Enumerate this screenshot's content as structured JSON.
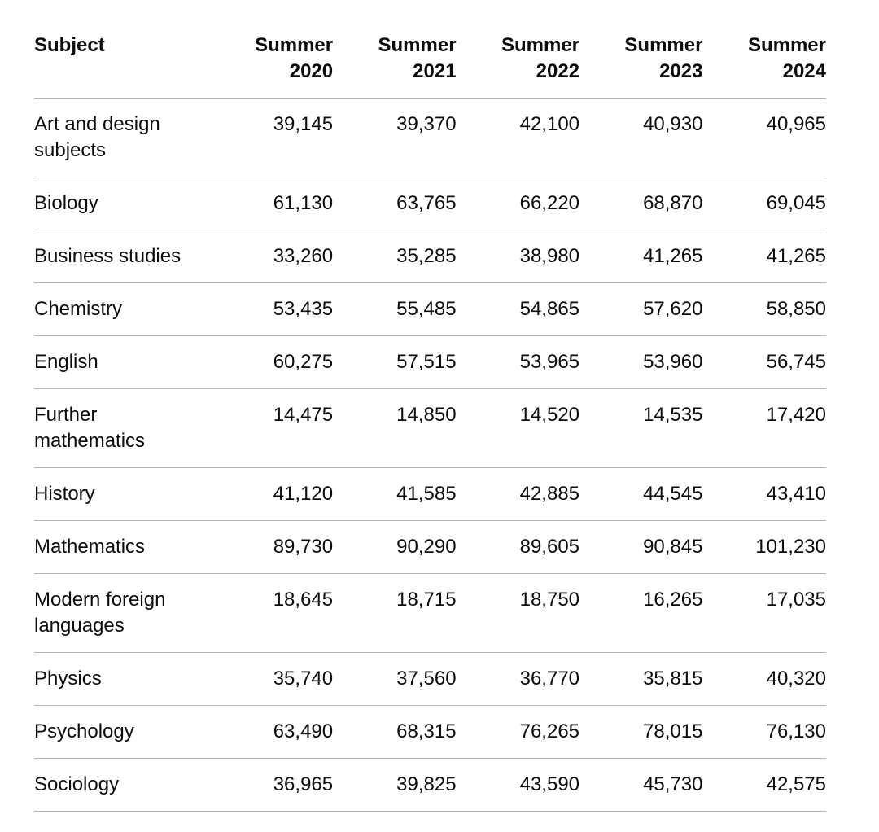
{
  "page": {
    "background_color": "#ffffff",
    "text_color": "#0b0c0c",
    "divider_color": "#b1b4b6"
  },
  "table": {
    "header": {
      "subject_label": "Subject",
      "year_columns": [
        {
          "season": "Summer",
          "year": "2020"
        },
        {
          "season": "Summer",
          "year": "2021"
        },
        {
          "season": "Summer",
          "year": "2022"
        },
        {
          "season": "Summer",
          "year": "2023"
        },
        {
          "season": "Summer",
          "year": "2024"
        }
      ]
    },
    "rows": [
      {
        "subject": "Art and design subjects",
        "values": [
          "39,145",
          "39,370",
          "42,100",
          "40,930",
          "40,965"
        ]
      },
      {
        "subject": "Biology",
        "values": [
          "61,130",
          "63,765",
          "66,220",
          "68,870",
          "69,045"
        ]
      },
      {
        "subject": "Business studies",
        "values": [
          "33,260",
          "35,285",
          "38,980",
          "41,265",
          "41,265"
        ]
      },
      {
        "subject": "Chemistry",
        "values": [
          "53,435",
          "55,485",
          "54,865",
          "57,620",
          "58,850"
        ]
      },
      {
        "subject": "English",
        "values": [
          "60,275",
          "57,515",
          "53,965",
          "53,960",
          "56,745"
        ]
      },
      {
        "subject": "Further mathematics",
        "values": [
          "14,475",
          "14,850",
          "14,520",
          "14,535",
          "17,420"
        ]
      },
      {
        "subject": "History",
        "values": [
          "41,120",
          "41,585",
          "42,885",
          "44,545",
          "43,410"
        ]
      },
      {
        "subject": "Mathematics",
        "values": [
          "89,730",
          "90,290",
          "89,605",
          "90,845",
          "101,230"
        ]
      },
      {
        "subject": "Modern foreign languages",
        "values": [
          "18,645",
          "18,715",
          "18,750",
          "16,265",
          "17,035"
        ]
      },
      {
        "subject": "Physics",
        "values": [
          "35,740",
          "37,560",
          "36,770",
          "35,815",
          "40,320"
        ]
      },
      {
        "subject": "Psychology",
        "values": [
          "63,490",
          "68,315",
          "76,265",
          "78,015",
          "76,130"
        ]
      },
      {
        "subject": "Sociology",
        "values": [
          "36,965",
          "39,825",
          "43,590",
          "45,730",
          "42,575"
        ]
      }
    ]
  },
  "chart_data": {
    "type": "table",
    "title": "",
    "columns": [
      "Subject",
      "Summer 2020",
      "Summer 2021",
      "Summer 2022",
      "Summer 2023",
      "Summer 2024"
    ],
    "rows": [
      [
        "Art and design subjects",
        39145,
        39370,
        42100,
        40930,
        40965
      ],
      [
        "Biology",
        61130,
        63765,
        66220,
        68870,
        69045
      ],
      [
        "Business studies",
        33260,
        35285,
        38980,
        41265,
        41265
      ],
      [
        "Chemistry",
        53435,
        55485,
        54865,
        57620,
        58850
      ],
      [
        "English",
        60275,
        57515,
        53965,
        53960,
        56745
      ],
      [
        "Further mathematics",
        14475,
        14850,
        14520,
        14535,
        17420
      ],
      [
        "History",
        41120,
        41585,
        42885,
        44545,
        43410
      ],
      [
        "Mathematics",
        89730,
        90290,
        89605,
        90845,
        101230
      ],
      [
        "Modern foreign languages",
        18645,
        18715,
        18750,
        16265,
        17035
      ],
      [
        "Physics",
        35740,
        37560,
        36770,
        35815,
        40320
      ],
      [
        "Psychology",
        63490,
        68315,
        76265,
        78015,
        76130
      ],
      [
        "Sociology",
        36965,
        39825,
        43590,
        45730,
        42575
      ]
    ]
  }
}
